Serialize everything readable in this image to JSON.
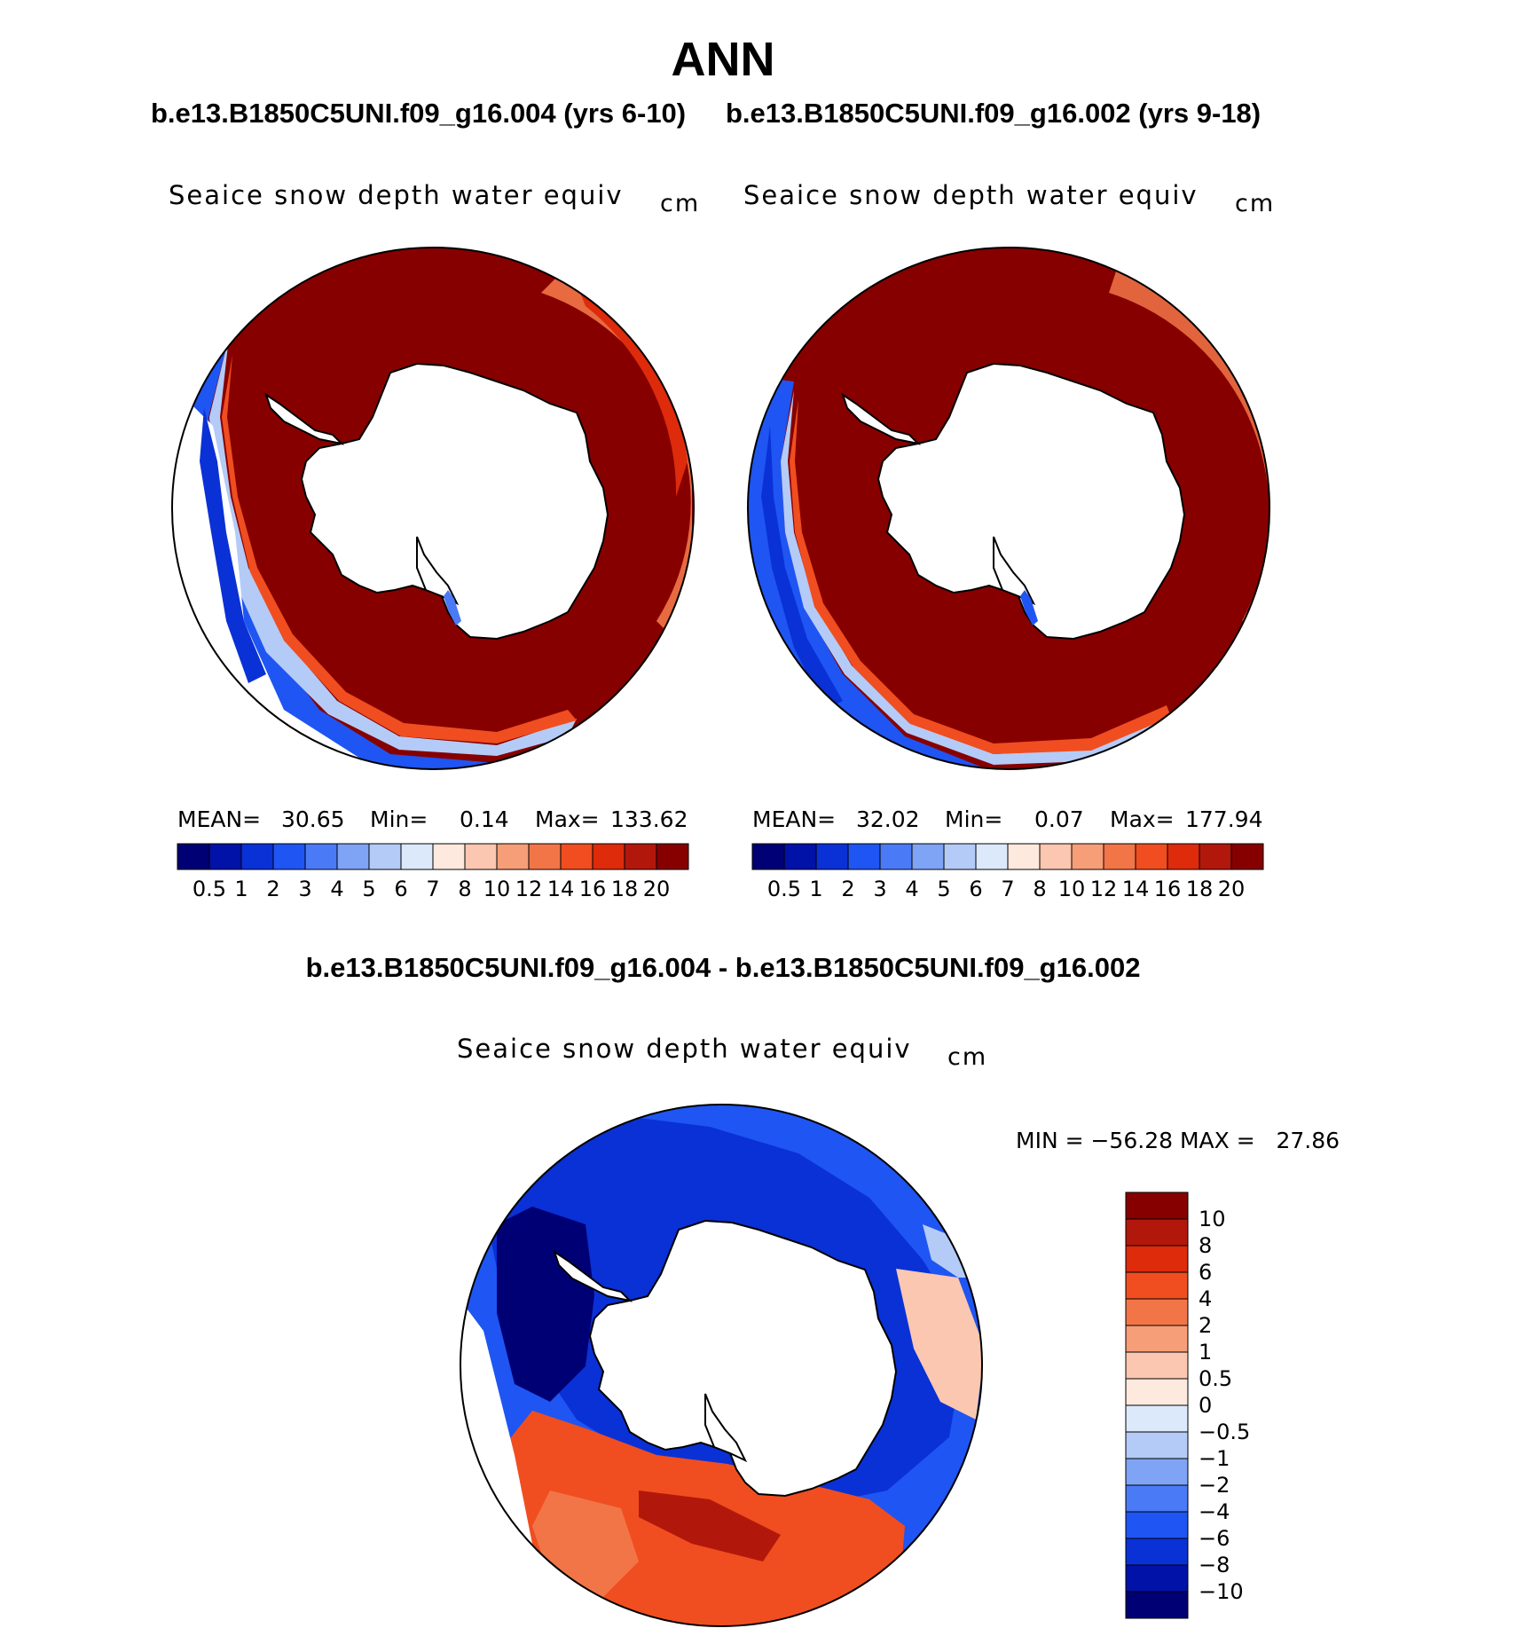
{
  "page_title": "ANN",
  "cases": {
    "case_a": "b.e13.B1850C5UNI.f09_g16.004 (yrs 6-10)",
    "case_b": "b.e13.B1850C5UNI.f09_g16.002 (yrs 9-18)",
    "diff_title": "b.e13.B1850C5UNI.f09_g16.004 - b.e13.B1850C5UNI.f09_g16.002"
  },
  "chart_data": [
    {
      "type": "heatmap",
      "projection": "south-polar-stereographic",
      "title": "Seaice snow depth water equiv",
      "units": "cm",
      "stats": {
        "mean_label": "MEAN=",
        "mean": "30.65",
        "min_label": "Min=",
        "min": "0.14",
        "max_label": "Max=",
        "max": "133.62"
      },
      "colorbar": {
        "labels": [
          "0.5",
          "1",
          "2",
          "3",
          "4",
          "5",
          "6",
          "7",
          "8",
          "10",
          "12",
          "14",
          "16",
          "18",
          "20"
        ],
        "colors": [
          "#000075",
          "#0012a8",
          "#0a31d6",
          "#1f55f2",
          "#4a7af5",
          "#7fa3f5",
          "#b4cbf7",
          "#dbe9fb",
          "#fde9dd",
          "#fbc7b0",
          "#f69e77",
          "#f27548",
          "#f04e20",
          "#dd2b0b",
          "#b2170b",
          "#870000"
        ]
      }
    },
    {
      "type": "heatmap",
      "projection": "south-polar-stereographic",
      "title": "Seaice snow depth water equiv",
      "units": "cm",
      "stats": {
        "mean_label": "MEAN=",
        "mean": "32.02",
        "min_label": "Min=",
        "min": "0.07",
        "max_label": "Max=",
        "max": "177.94"
      },
      "colorbar": {
        "labels": [
          "0.5",
          "1",
          "2",
          "3",
          "4",
          "5",
          "6",
          "7",
          "8",
          "10",
          "12",
          "14",
          "16",
          "18",
          "20"
        ],
        "colors": [
          "#000075",
          "#0012a8",
          "#0a31d6",
          "#1f55f2",
          "#4a7af5",
          "#7fa3f5",
          "#b4cbf7",
          "#dbe9fb",
          "#fde9dd",
          "#fbc7b0",
          "#f69e77",
          "#f27548",
          "#f04e20",
          "#dd2b0b",
          "#b2170b",
          "#870000"
        ]
      }
    },
    {
      "type": "heatmap",
      "projection": "south-polar-stereographic",
      "title": "Seaice snow depth water equiv",
      "units": "cm",
      "stats_text": "MIN = −56.28 MAX =   27.86",
      "colorbar": {
        "orientation": "vertical",
        "labels": [
          "10",
          "8",
          "6",
          "4",
          "2",
          "1",
          "0.5",
          "0",
          "−0.5",
          "−1",
          "−2",
          "−4",
          "−6",
          "−8",
          "−10"
        ],
        "colors": [
          "#870000",
          "#b2170b",
          "#dd2b0b",
          "#f04e20",
          "#f27548",
          "#f69e77",
          "#fbc7b0",
          "#fde9dd",
          "#dbe9fb",
          "#b4cbf7",
          "#7fa3f5",
          "#4a7af5",
          "#1f55f2",
          "#0a31d6",
          "#0012a8",
          "#000075"
        ]
      }
    }
  ]
}
